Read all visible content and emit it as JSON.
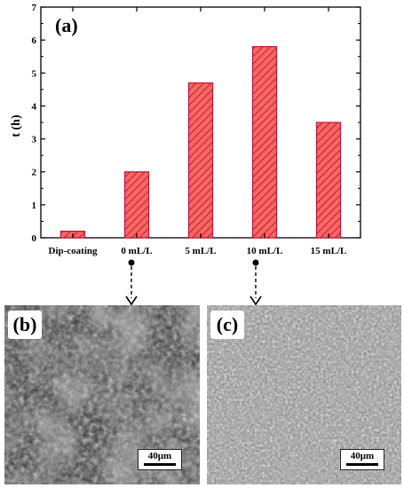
{
  "chart_data": {
    "type": "bar",
    "panel_label": "(a)",
    "ylabel": "t (h)",
    "xlabel": "",
    "ylim": [
      0,
      7
    ],
    "yticks": [
      0,
      1,
      2,
      3,
      4,
      5,
      6,
      7
    ],
    "categories": [
      "Dip-coating",
      "0 mL/L",
      "5 mL/L",
      "10 mL/L",
      "15 mL/L"
    ],
    "values": [
      0.2,
      2.0,
      4.7,
      5.8,
      3.5
    ],
    "bar_fill": "#ff6464",
    "bar_edge": "#c0143c",
    "hatch_color": "#8b1a1a",
    "grid": false
  },
  "micrographs": [
    {
      "panel_label": "(b)",
      "scale_label": "40μm",
      "linked_category": "0 mL/L"
    },
    {
      "panel_label": "(c)",
      "scale_label": "40μm",
      "linked_category": "10 mL/L"
    }
  ]
}
